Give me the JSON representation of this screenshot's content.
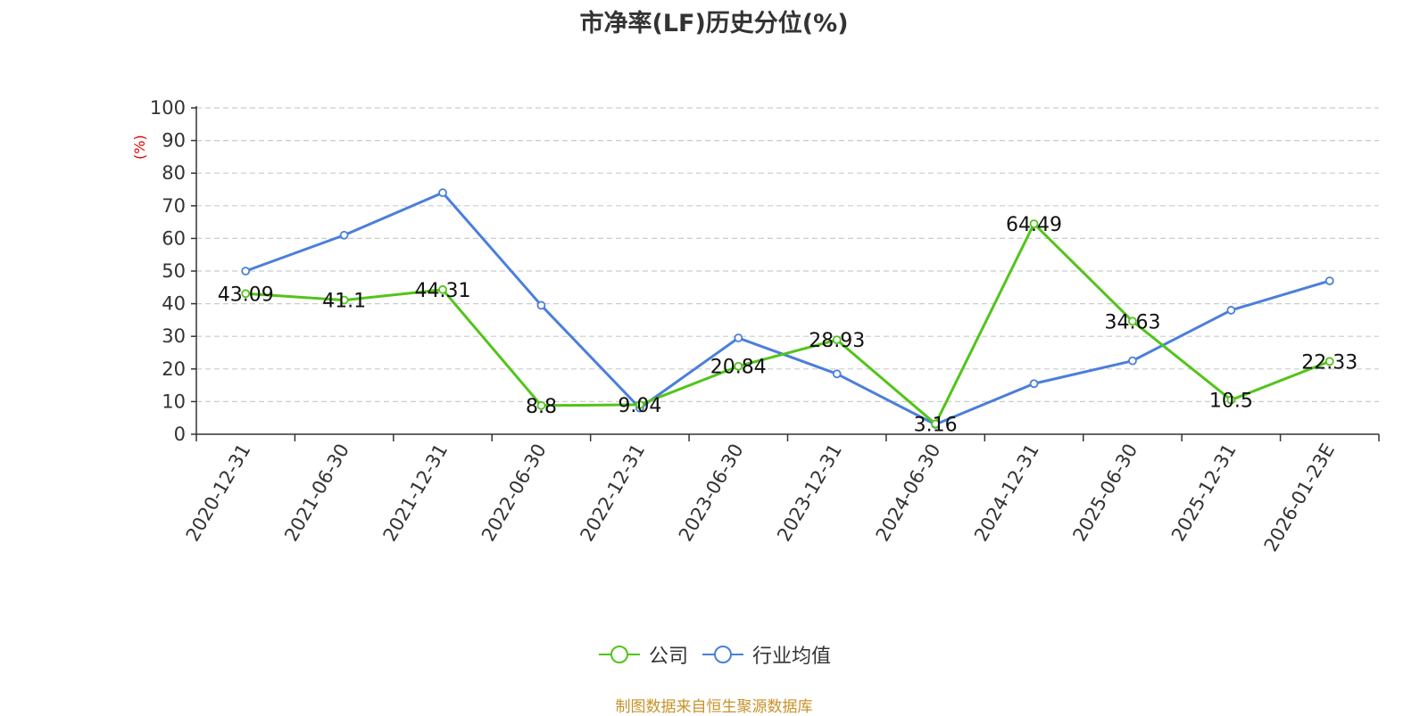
{
  "chart_data": {
    "type": "line",
    "title": "市净率(LF)历史分位(%)",
    "ylabel": "(%)",
    "xlabel": "",
    "ylim": [
      0,
      100
    ],
    "yticks": [
      0,
      10,
      20,
      30,
      40,
      50,
      60,
      70,
      80,
      90,
      100
    ],
    "categories": [
      "2020-12-31",
      "2021-06-30",
      "2021-12-31",
      "2022-06-30",
      "2022-12-31",
      "2023-06-30",
      "2023-12-31",
      "2024-06-30",
      "2024-12-31",
      "2025-06-30",
      "2025-12-31",
      "2026-01-23E"
    ],
    "grid": true,
    "legend_position": "bottom",
    "series": [
      {
        "name": "公司",
        "color": "#52c41a",
        "show_labels": true,
        "values": [
          43.09,
          41.1,
          44.31,
          8.8,
          9.04,
          20.84,
          28.93,
          3.16,
          64.49,
          34.63,
          10.5,
          22.33
        ]
      },
      {
        "name": "行业均值",
        "color": "#4a7fdb",
        "show_labels": false,
        "values": [
          50.0,
          61.0,
          74.0,
          39.5,
          8.0,
          29.5,
          18.5,
          3.0,
          15.5,
          22.5,
          38.0,
          47.0
        ]
      }
    ]
  },
  "footer": {
    "source": "制图数据来自恒生聚源数据库"
  }
}
